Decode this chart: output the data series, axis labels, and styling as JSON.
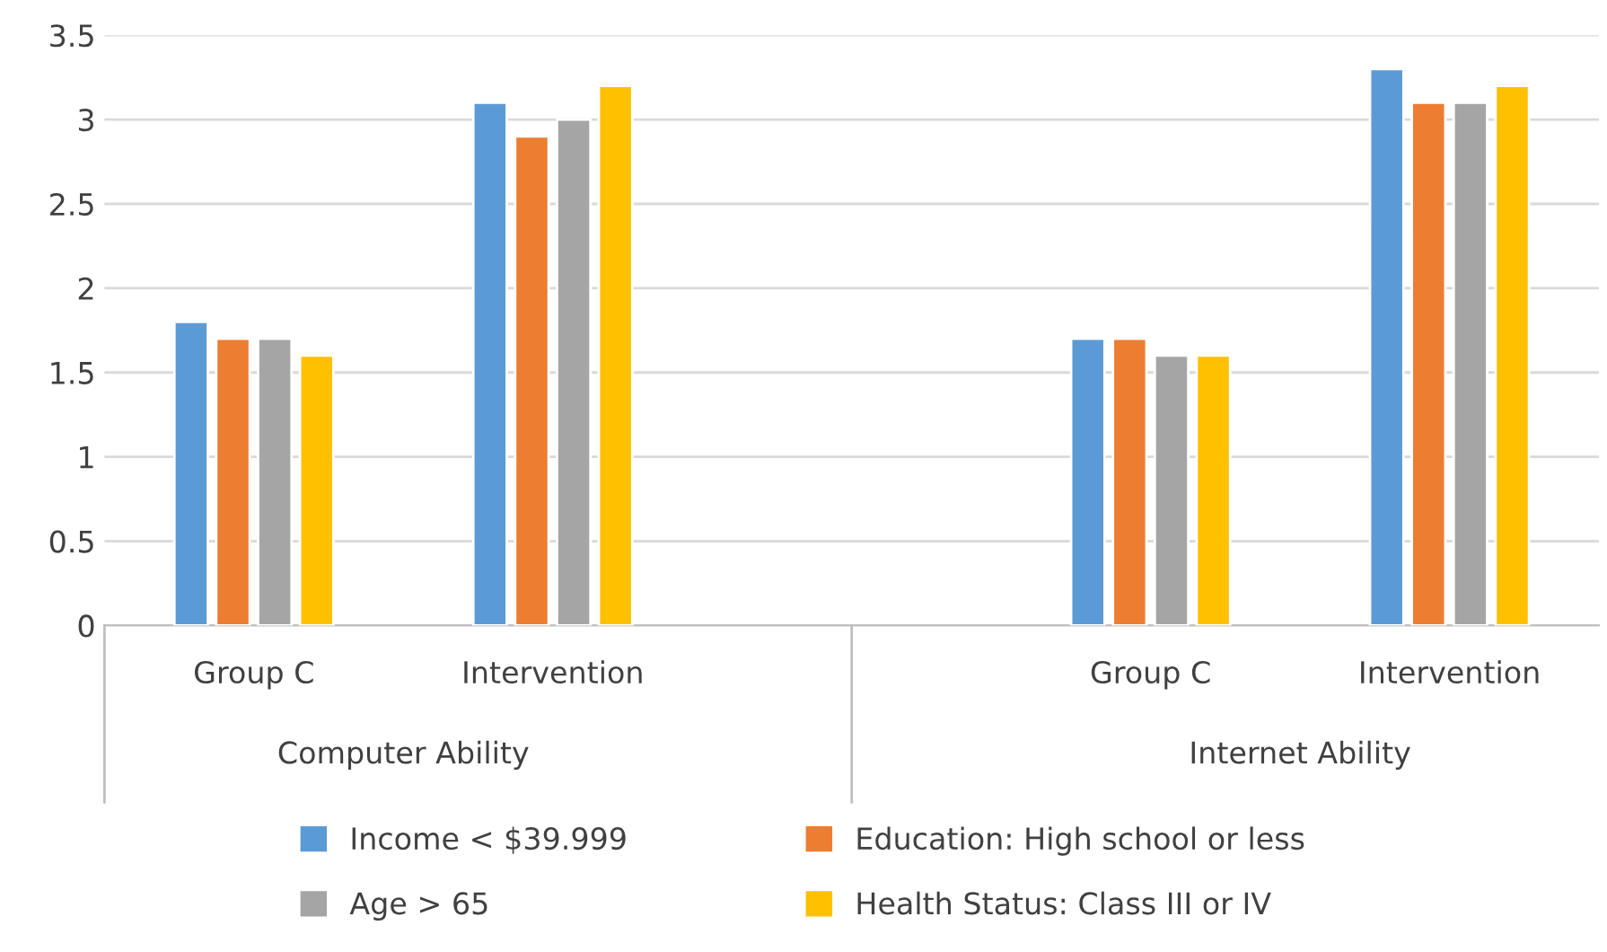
{
  "chart_data": {
    "type": "bar",
    "categories": [
      "Group C",
      "Intervention",
      null,
      "Group C",
      "Intervention"
    ],
    "series": [
      {
        "name": "Income < $39.999",
        "color": "#5b9bd5",
        "values": [
          1.8,
          3.1,
          null,
          1.7,
          3.3
        ]
      },
      {
        "name": "Education: High school or less",
        "color": "#ed7d31",
        "values": [
          1.7,
          2.9,
          null,
          1.7,
          3.1
        ]
      },
      {
        "name": "Age > 65",
        "color": "#a5a5a5",
        "values": [
          1.7,
          3.0,
          null,
          1.6,
          3.1
        ]
      },
      {
        "name": "Health Status: Class III or IV",
        "color": "#ffc000",
        "values": [
          1.6,
          3.2,
          null,
          1.6,
          3.2
        ]
      }
    ],
    "annotations": [
      "Computer Ability",
      "Internet Ability"
    ],
    "ylim": [
      0,
      3.5
    ],
    "yticks": [
      0,
      0.5,
      1,
      1.5,
      2,
      2.5,
      3,
      3.5
    ],
    "grid": "y",
    "legend": "bottom"
  }
}
